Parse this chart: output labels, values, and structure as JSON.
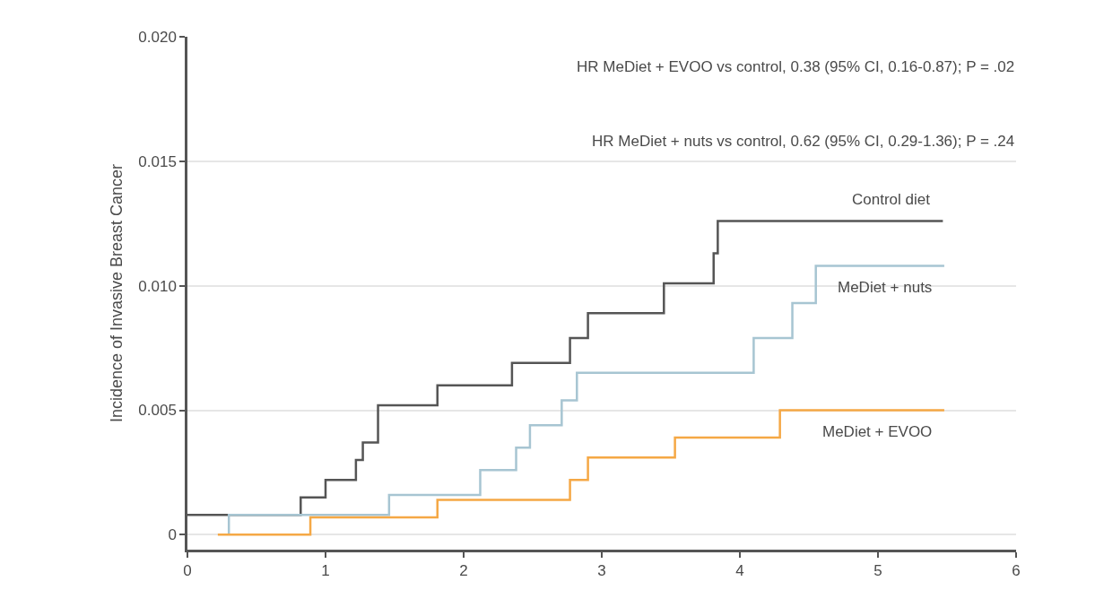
{
  "chart_data": {
    "type": "step",
    "ylabel": "Incidence of Invasive Breast Cancer",
    "annotations": [
      "HR MeDiet + EVOO vs control, 0.38 (95% CI, 0.16-0.87); P = .02",
      "HR MeDiet + nuts vs control, 0.62 (95% CI, 0.29-1.36); P = .24"
    ],
    "series": [
      {
        "name": "Control diet",
        "color": "#555555",
        "x": [
          0,
          0.82,
          1.0,
          1.22,
          1.27,
          1.38,
          1.81,
          2.35,
          2.77,
          2.9,
          3.45,
          3.81,
          3.84,
          5.47
        ],
        "values": [
          0.0008,
          0.0015,
          0.0022,
          0.003,
          0.0037,
          0.0052,
          0.006,
          0.0069,
          0.0079,
          0.0089,
          0.0101,
          0.0113,
          0.0126,
          0.0126
        ]
      },
      {
        "name": "MeDiet + nuts",
        "color": "#a7c5d2",
        "x": [
          0.3,
          0.3,
          1.46,
          2.12,
          2.38,
          2.48,
          2.71,
          2.82,
          4.1,
          4.38,
          4.55,
          5.48
        ],
        "values": [
          0,
          0.0008,
          0.0016,
          0.0026,
          0.0035,
          0.0044,
          0.0054,
          0.0065,
          0.0079,
          0.0093,
          0.0108,
          0.0108
        ]
      },
      {
        "name": "MeDiet + EVOO",
        "color": "#f5a845",
        "x": [
          0.22,
          0.89,
          1.81,
          2.77,
          2.9,
          3.53,
          4.29,
          5.48
        ],
        "values": [
          0,
          0.0007,
          0.0014,
          0.0022,
          0.0031,
          0.0039,
          0.005,
          0.005
        ]
      }
    ],
    "xlim": [
      0,
      6
    ],
    "xticks": [
      0,
      1,
      2,
      3,
      4,
      5,
      6
    ],
    "ylim": [
      -0.0006,
      0.02
    ],
    "yticks": [
      0,
      0.005,
      {
        "value": 0.01,
        "label": "0.010"
      },
      0.015,
      {
        "value": 0.02,
        "label": "0.020"
      }
    ],
    "grid": "y",
    "legend": false
  }
}
